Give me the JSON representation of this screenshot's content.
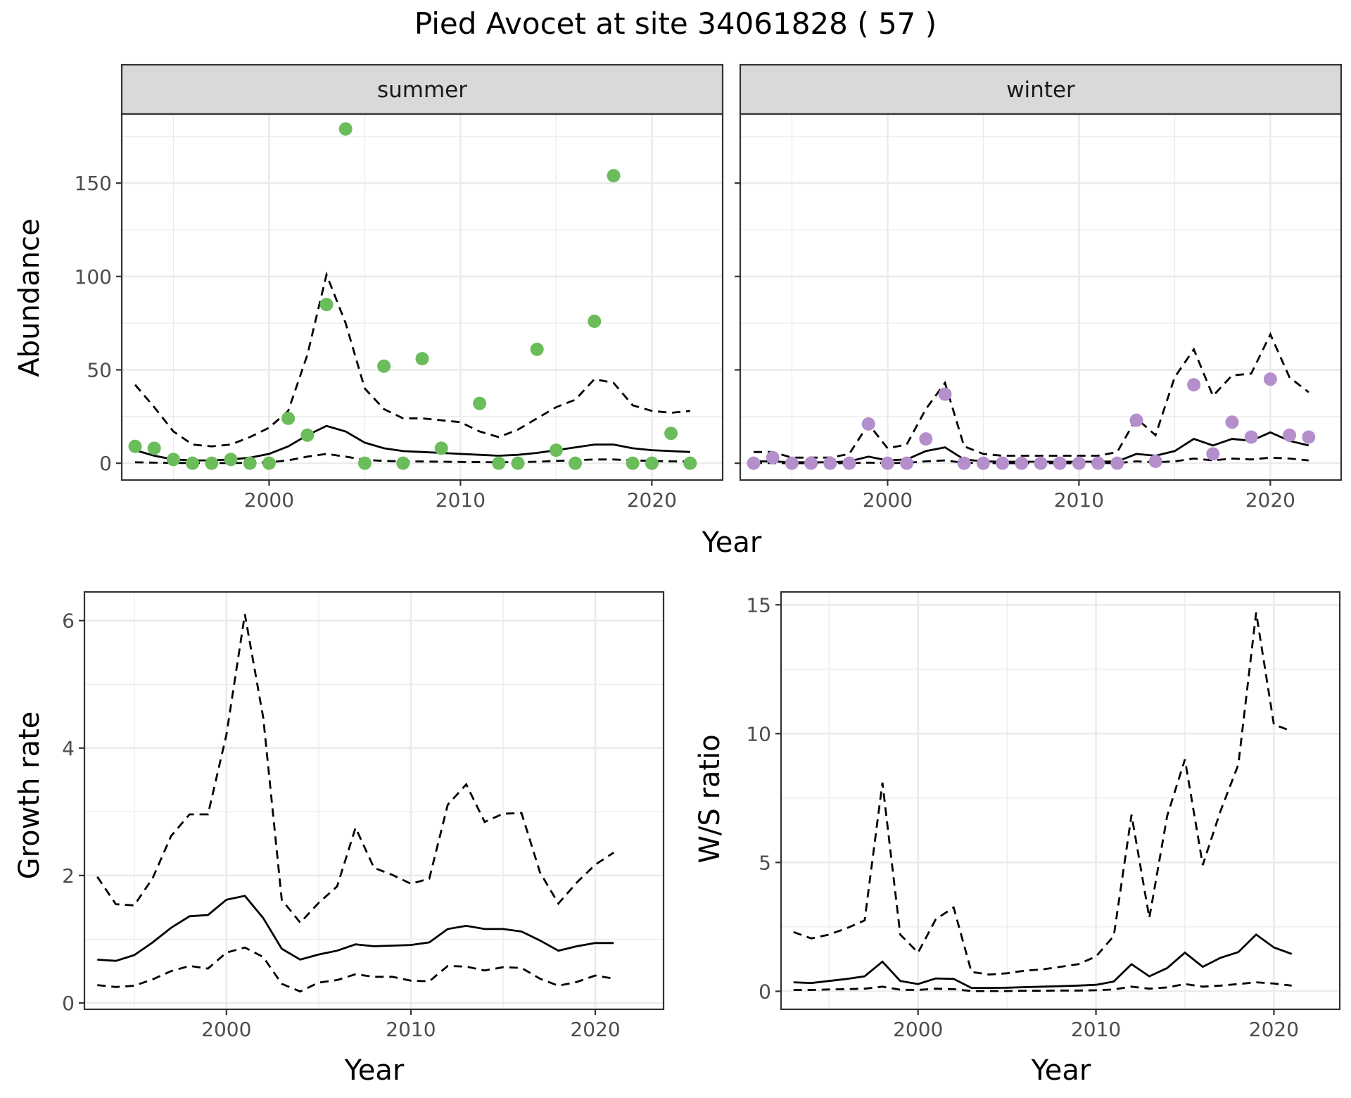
{
  "title": "Pied Avocet at site 34061828 ( 57 )",
  "colors": {
    "summer_points": "#6abd5a",
    "winter_points": "#b48fcb",
    "strip_fill": "#d9d9d9",
    "line": "#000000"
  },
  "chart_data": [
    {
      "id": "abundance_summer",
      "type": "scatter",
      "facet_label": "summer",
      "xlabel": "Year",
      "ylabel": "Abundance",
      "xlim": [
        1992.3,
        2023.7
      ],
      "ylim": [
        -9,
        187
      ],
      "x_ticks": [
        2000,
        2010,
        2020
      ],
      "y_ticks": [
        0,
        50,
        100,
        150
      ],
      "grid": true,
      "points": {
        "x": [
          1993,
          1994,
          1995,
          1996,
          1997,
          1998,
          1999,
          2000,
          2001,
          2002,
          2003,
          2004,
          2005,
          2006,
          2007,
          2008,
          2009,
          2010,
          2011,
          2012,
          2013,
          2014,
          2015,
          2016,
          2017,
          2018,
          2019,
          2020,
          2021,
          2022
        ],
        "y": [
          9,
          8,
          2,
          0,
          0,
          2,
          0,
          0,
          24,
          15,
          85,
          179,
          0,
          52,
          0,
          56,
          8,
          null,
          32,
          0,
          0,
          61,
          7,
          0,
          76,
          154,
          0,
          0,
          16,
          0
        ]
      },
      "fit": {
        "x": [
          1993,
          1994,
          1995,
          1996,
          1997,
          1998,
          1999,
          2000,
          2001,
          2002,
          2003,
          2004,
          2005,
          2006,
          2007,
          2008,
          2009,
          2010,
          2011,
          2012,
          2013,
          2014,
          2015,
          2016,
          2017,
          2018,
          2019,
          2020,
          2021,
          2022
        ],
        "mid": [
          7,
          4,
          2,
          1.5,
          1.5,
          2,
          3,
          5,
          9,
          15,
          20,
          17,
          11,
          8,
          6.5,
          6,
          5.5,
          5,
          4.5,
          4,
          4.5,
          5.5,
          7,
          8.5,
          10,
          10,
          8,
          7,
          6.5,
          6
        ],
        "lower": [
          0.5,
          0.3,
          0.2,
          0.1,
          0.1,
          0.1,
          0.2,
          0.5,
          1.5,
          3.5,
          5,
          3.5,
          1.8,
          1.2,
          1,
          0.9,
          0.8,
          0.7,
          0.6,
          0.5,
          0.6,
          0.8,
          1.2,
          1.6,
          2,
          2,
          1.5,
          1.2,
          1,
          0.9
        ],
        "upper": [
          42,
          30,
          17,
          10,
          9,
          10,
          14,
          19,
          28,
          58,
          101,
          75,
          40,
          29,
          24,
          24,
          23,
          22,
          17,
          14,
          18,
          24,
          30,
          34,
          45,
          43,
          31,
          28,
          27,
          28
        ]
      }
    },
    {
      "id": "abundance_winter",
      "type": "scatter",
      "facet_label": "winter",
      "xlabel": "Year",
      "ylabel": "Abundance",
      "xlim": [
        1992.3,
        2023.7
      ],
      "ylim": [
        -9,
        187
      ],
      "x_ticks": [
        2000,
        2010,
        2020
      ],
      "y_ticks": [
        0,
        50,
        100,
        150
      ],
      "grid": true,
      "points": {
        "x": [
          1993,
          1994,
          1995,
          1996,
          1997,
          1998,
          1999,
          2000,
          2001,
          2002,
          2003,
          2004,
          2005,
          2006,
          2007,
          2008,
          2009,
          2010,
          2011,
          2012,
          2013,
          2014,
          2015,
          2016,
          2017,
          2018,
          2019,
          2020,
          2021,
          2022
        ],
        "y": [
          0,
          3,
          0,
          0,
          0,
          0,
          21,
          0,
          0,
          13,
          37,
          0,
          0,
          0,
          0,
          0,
          0,
          0,
          0,
          0,
          23,
          1,
          null,
          42,
          5,
          22,
          14,
          45,
          15,
          14
        ]
      },
      "fit": {
        "x": [
          1993,
          1994,
          1995,
          1996,
          1997,
          1998,
          1999,
          2000,
          2001,
          2002,
          2003,
          2004,
          2005,
          2006,
          2007,
          2008,
          2009,
          2010,
          2011,
          2012,
          2013,
          2014,
          2015,
          2016,
          2017,
          2018,
          2019,
          2020,
          2021,
          2022
        ],
        "mid": [
          1,
          1,
          0.5,
          0.5,
          0.5,
          1,
          3.5,
          1.5,
          2,
          6.5,
          8.5,
          2,
          1,
          0.8,
          0.8,
          0.8,
          0.8,
          0.8,
          0.8,
          1,
          5,
          4,
          6.5,
          13,
          9.5,
          13,
          12,
          16.5,
          12,
          9.5
        ],
        "lower": [
          0.1,
          0.1,
          0,
          0,
          0,
          0,
          0.3,
          0.1,
          0.2,
          1,
          1.5,
          0.2,
          0.1,
          0,
          0,
          0,
          0,
          0,
          0,
          0.1,
          1,
          0.5,
          1,
          2.5,
          1.5,
          2.5,
          2,
          3,
          2.5,
          1.5
        ],
        "upper": [
          6,
          6,
          3,
          3,
          3,
          5,
          21,
          8,
          10,
          29,
          43,
          9,
          5,
          4,
          4,
          4,
          4,
          4,
          4,
          6,
          24,
          15,
          46,
          61,
          36,
          47,
          48,
          69,
          46,
          38
        ]
      }
    },
    {
      "id": "growth_rate",
      "type": "line",
      "xlabel": "Year",
      "ylabel": "Growth rate",
      "xlim": [
        1992.3,
        2023.7
      ],
      "ylim": [
        -0.1,
        6.45
      ],
      "x_ticks": [
        2000,
        2010,
        2020
      ],
      "y_ticks": [
        0,
        2,
        4,
        6
      ],
      "grid": true,
      "series": [
        {
          "x": [
            1993,
            1994,
            1995,
            1996,
            1997,
            1998,
            1999,
            2000,
            2001,
            2002,
            2003,
            2004,
            2005,
            2006,
            2007,
            2008,
            2009,
            2010,
            2011,
            2012,
            2013,
            2014,
            2015,
            2016,
            2017,
            2018,
            2019,
            2020,
            2021
          ],
          "mid": [
            0.68,
            0.66,
            0.75,
            0.95,
            1.18,
            1.36,
            1.38,
            1.62,
            1.68,
            1.33,
            0.85,
            0.68,
            0.76,
            0.82,
            0.92,
            0.89,
            0.9,
            0.91,
            0.95,
            1.16,
            1.21,
            1.16,
            1.16,
            1.12,
            0.98,
            0.82,
            0.89,
            0.94,
            0.94
          ],
          "lower": [
            0.28,
            0.25,
            0.27,
            0.37,
            0.5,
            0.58,
            0.54,
            0.79,
            0.87,
            0.72,
            0.3,
            0.18,
            0.32,
            0.36,
            0.45,
            0.41,
            0.41,
            0.35,
            0.34,
            0.58,
            0.57,
            0.51,
            0.56,
            0.55,
            0.38,
            0.27,
            0.33,
            0.43,
            0.38
          ],
          "upper": [
            1.98,
            1.55,
            1.53,
            1.96,
            2.62,
            2.96,
            2.96,
            4.21,
            6.1,
            4.47,
            1.62,
            1.26,
            1.57,
            1.83,
            2.75,
            2.12,
            2.01,
            1.87,
            1.95,
            3.11,
            3.43,
            2.84,
            2.97,
            2.98,
            2.05,
            1.56,
            1.89,
            2.17,
            2.36
          ]
        }
      ]
    },
    {
      "id": "ws_ratio",
      "type": "line",
      "xlabel": "Year",
      "ylabel": "W/S ratio",
      "xlim": [
        1992.3,
        2023.7
      ],
      "ylim": [
        -0.7,
        15.5
      ],
      "x_ticks": [
        2000,
        2010,
        2020
      ],
      "y_ticks": [
        0,
        5,
        10,
        15
      ],
      "grid": true,
      "series": [
        {
          "x": [
            1993,
            1994,
            1995,
            1996,
            1997,
            1998,
            1999,
            2000,
            2001,
            2002,
            2003,
            2004,
            2005,
            2006,
            2007,
            2008,
            2009,
            2010,
            2011,
            2012,
            2013,
            2014,
            2015,
            2016,
            2017,
            2018,
            2019,
            2020,
            2021
          ],
          "mid": [
            0.35,
            0.32,
            0.4,
            0.48,
            0.58,
            1.15,
            0.4,
            0.28,
            0.5,
            0.48,
            0.13,
            0.13,
            0.14,
            0.16,
            0.18,
            0.2,
            0.22,
            0.25,
            0.38,
            1.05,
            0.58,
            0.9,
            1.5,
            0.95,
            1.3,
            1.52,
            2.2,
            1.7,
            1.45
          ],
          "lower": [
            0.05,
            0.05,
            0.07,
            0.08,
            0.1,
            0.18,
            0.06,
            0.05,
            0.1,
            0.08,
            0.01,
            0.01,
            0.01,
            0.02,
            0.02,
            0.03,
            0.03,
            0.04,
            0.07,
            0.18,
            0.1,
            0.15,
            0.28,
            0.18,
            0.22,
            0.28,
            0.35,
            0.3,
            0.22
          ],
          "upper": [
            2.3,
            2.05,
            2.2,
            2.45,
            2.75,
            8.1,
            2.2,
            1.5,
            2.8,
            3.25,
            0.75,
            0.65,
            0.7,
            0.8,
            0.85,
            0.95,
            1.05,
            1.35,
            2.15,
            6.85,
            2.85,
            6.8,
            9.0,
            4.9,
            7.0,
            8.8,
            14.7,
            10.35,
            10.1
          ]
        }
      ]
    }
  ]
}
